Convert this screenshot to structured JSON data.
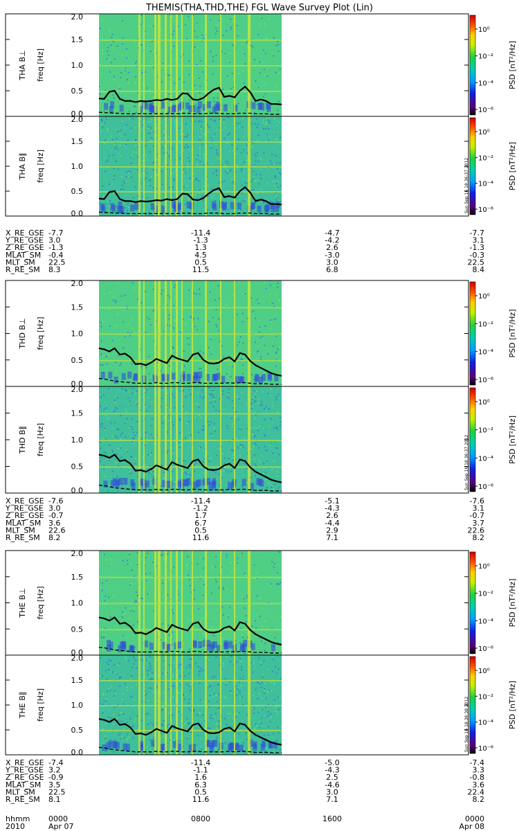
{
  "title": "THEMIS(THA,THD,THE) FGL Wave Survey Plot (Lin)",
  "colorbar": {
    "label": "PSD [nT²/Hz]",
    "tick_labels": [
      "10⁰",
      "10⁻²",
      "10⁻⁴",
      "10⁻⁶"
    ],
    "stamps": [
      "Sun Sep 16 18:36:37 2012",
      "Sun Sep 16 18:36:37 2012",
      "Sun Sep 16 18:36:38 2012"
    ]
  },
  "freq_ticks": [
    "2.0",
    "1.5",
    "1.0",
    "0.5",
    "0.0"
  ],
  "time_axis": {
    "row_labels": [
      "hhmm",
      "2010"
    ],
    "ticks": [
      {
        "hhmm": "0000",
        "date": "Apr 07"
      },
      {
        "hhmm": "0800",
        "date": ""
      },
      {
        "hhmm": "1600",
        "date": ""
      },
      {
        "hhmm": "0000",
        "date": "Apr 08"
      }
    ]
  },
  "chart_data": [
    {
      "type": "heatmap",
      "probe": "THA",
      "panels": [
        {
          "ylabel": "THA B⊥",
          "axis_label": "freq [Hz]",
          "ylim": [
            0,
            2
          ],
          "line_solid": [
            0.35,
            0.34,
            0.48,
            0.5,
            0.34,
            0.3,
            0.3,
            0.28,
            0.3,
            0.29,
            0.3,
            0.32,
            0.31,
            0.34,
            0.32,
            0.34,
            0.45,
            0.44,
            0.33,
            0.32,
            0.36,
            0.45,
            0.52,
            0.56,
            0.38,
            0.4,
            0.37,
            0.5,
            0.58,
            0.47,
            0.3,
            0.33,
            0.3,
            0.24,
            0.24,
            0.23
          ],
          "line_dashed": [
            0.08,
            0.07,
            0.07,
            0.06,
            0.06,
            0.05,
            0.05,
            0.05,
            0.05,
            0.05,
            0.05,
            0.05,
            0.05,
            0.05,
            0.05,
            0.05,
            0.06,
            0.06,
            0.05,
            0.05,
            0.05,
            0.06,
            0.06,
            0.06,
            0.05,
            0.05,
            0.05,
            0.06,
            0.06,
            0.06,
            0.05,
            0.05,
            0.05,
            0.04,
            0.04,
            0.04
          ]
        },
        {
          "ylabel": "THA B∥",
          "axis_label": "freq [Hz]",
          "ylim": [
            0,
            2
          ],
          "line_solid": [
            0.35,
            0.34,
            0.48,
            0.5,
            0.34,
            0.3,
            0.3,
            0.28,
            0.3,
            0.29,
            0.3,
            0.32,
            0.31,
            0.34,
            0.32,
            0.34,
            0.45,
            0.44,
            0.33,
            0.32,
            0.36,
            0.45,
            0.52,
            0.56,
            0.38,
            0.4,
            0.37,
            0.5,
            0.58,
            0.47,
            0.3,
            0.33,
            0.3,
            0.24,
            0.24,
            0.23
          ],
          "line_dashed": [
            0.08,
            0.07,
            0.07,
            0.06,
            0.06,
            0.05,
            0.05,
            0.05,
            0.05,
            0.05,
            0.05,
            0.05,
            0.05,
            0.05,
            0.05,
            0.05,
            0.06,
            0.06,
            0.05,
            0.05,
            0.05,
            0.06,
            0.06,
            0.06,
            0.05,
            0.05,
            0.05,
            0.06,
            0.06,
            0.06,
            0.05,
            0.05,
            0.05,
            0.04,
            0.04,
            0.04
          ]
        }
      ],
      "ephemeris": [
        {
          "label": "X_RE_GSE",
          "values": [
            "-7.7",
            "-11.4",
            "-4.7",
            "-7.7"
          ]
        },
        {
          "label": "Y_RE_GSE",
          "values": [
            "3.0",
            "-1.3",
            "-4.2",
            "3.1"
          ]
        },
        {
          "label": "Z_RE_GSE",
          "values": [
            "-1.3",
            "1.3",
            "2.6",
            "-1.3"
          ]
        },
        {
          "label": "MLAT_SM",
          "values": [
            "-0.4",
            "4.5",
            "-3.0",
            "-0.3"
          ]
        },
        {
          "label": "MLT_SM",
          "values": [
            "22.5",
            "0.5",
            "3.0",
            "22.5"
          ]
        },
        {
          "label": "R_RE_SM",
          "values": [
            "8.3",
            "11.5",
            "6.8",
            "8.4"
          ]
        }
      ]
    },
    {
      "type": "heatmap",
      "probe": "THD",
      "panels": [
        {
          "ylabel": "THD B⊥",
          "axis_label": "freq [Hz]",
          "ylim": [
            0,
            2
          ],
          "line_solid": [
            0.72,
            0.7,
            0.66,
            0.72,
            0.6,
            0.62,
            0.55,
            0.42,
            0.43,
            0.4,
            0.45,
            0.52,
            0.48,
            0.44,
            0.58,
            0.53,
            0.5,
            0.47,
            0.6,
            0.63,
            0.5,
            0.44,
            0.43,
            0.45,
            0.52,
            0.55,
            0.47,
            0.63,
            0.6,
            0.48,
            0.4,
            0.35,
            0.3,
            0.25,
            0.22,
            0.2
          ],
          "line_dashed": [
            0.15,
            0.14,
            0.12,
            0.1,
            0.09,
            0.08,
            0.07,
            0.06,
            0.06,
            0.06,
            0.06,
            0.07,
            0.06,
            0.06,
            0.07,
            0.07,
            0.06,
            0.06,
            0.07,
            0.07,
            0.06,
            0.06,
            0.06,
            0.06,
            0.06,
            0.07,
            0.06,
            0.07,
            0.07,
            0.06,
            0.05,
            0.05,
            0.05,
            0.04,
            0.04,
            0.04
          ]
        },
        {
          "ylabel": "THD B∥",
          "axis_label": "freq [Hz]",
          "ylim": [
            0,
            2
          ],
          "line_solid": [
            0.72,
            0.7,
            0.66,
            0.72,
            0.6,
            0.62,
            0.55,
            0.42,
            0.43,
            0.4,
            0.45,
            0.52,
            0.48,
            0.44,
            0.58,
            0.53,
            0.5,
            0.47,
            0.6,
            0.63,
            0.5,
            0.44,
            0.43,
            0.45,
            0.52,
            0.55,
            0.47,
            0.63,
            0.6,
            0.48,
            0.4,
            0.35,
            0.3,
            0.25,
            0.22,
            0.2
          ],
          "line_dashed": [
            0.15,
            0.14,
            0.12,
            0.1,
            0.09,
            0.08,
            0.07,
            0.06,
            0.06,
            0.06,
            0.06,
            0.07,
            0.06,
            0.06,
            0.07,
            0.07,
            0.06,
            0.06,
            0.07,
            0.07,
            0.06,
            0.06,
            0.06,
            0.06,
            0.06,
            0.07,
            0.06,
            0.07,
            0.07,
            0.06,
            0.05,
            0.05,
            0.05,
            0.04,
            0.04,
            0.04
          ]
        }
      ],
      "ephemeris": [
        {
          "label": "X_RE_GSE",
          "values": [
            "-7.6",
            "-11.4",
            "-5.1",
            "-7.6"
          ]
        },
        {
          "label": "Y_RE_GSE",
          "values": [
            "3.0",
            "-1.2",
            "-4.3",
            "3.1"
          ]
        },
        {
          "label": "Z_RE_GSE",
          "values": [
            "-0.7",
            "1.7",
            "2.6",
            "-0.7"
          ]
        },
        {
          "label": "MLAT_SM",
          "values": [
            "3.6",
            "6.7",
            "-4.4",
            "3.7"
          ]
        },
        {
          "label": "MLT_SM",
          "values": [
            "22.6",
            "0.5",
            "2.9",
            "22.6"
          ]
        },
        {
          "label": "R_RE_SM",
          "values": [
            "8.2",
            "11.6",
            "7.1",
            "8.2"
          ]
        }
      ]
    },
    {
      "type": "heatmap",
      "probe": "THE",
      "panels": [
        {
          "ylabel": "THE B⊥",
          "axis_label": "freq [Hz]",
          "ylim": [
            0,
            2
          ],
          "line_solid": [
            0.72,
            0.7,
            0.66,
            0.72,
            0.6,
            0.62,
            0.55,
            0.42,
            0.43,
            0.4,
            0.45,
            0.52,
            0.48,
            0.44,
            0.58,
            0.53,
            0.5,
            0.47,
            0.6,
            0.63,
            0.5,
            0.44,
            0.43,
            0.45,
            0.52,
            0.55,
            0.47,
            0.63,
            0.6,
            0.48,
            0.4,
            0.35,
            0.3,
            0.25,
            0.22,
            0.2
          ],
          "line_dashed": [
            0.15,
            0.14,
            0.12,
            0.1,
            0.09,
            0.08,
            0.07,
            0.06,
            0.06,
            0.06,
            0.06,
            0.07,
            0.06,
            0.06,
            0.07,
            0.07,
            0.06,
            0.06,
            0.07,
            0.07,
            0.06,
            0.06,
            0.06,
            0.06,
            0.06,
            0.07,
            0.06,
            0.07,
            0.07,
            0.06,
            0.05,
            0.05,
            0.05,
            0.04,
            0.04,
            0.04
          ]
        },
        {
          "ylabel": "THE B∥",
          "axis_label": "freq [Hz]",
          "ylim": [
            0,
            2
          ],
          "line_solid": [
            0.72,
            0.7,
            0.66,
            0.72,
            0.6,
            0.62,
            0.55,
            0.42,
            0.43,
            0.4,
            0.45,
            0.52,
            0.48,
            0.44,
            0.58,
            0.53,
            0.5,
            0.47,
            0.6,
            0.63,
            0.5,
            0.44,
            0.43,
            0.45,
            0.52,
            0.55,
            0.47,
            0.63,
            0.6,
            0.48,
            0.4,
            0.35,
            0.3,
            0.25,
            0.22,
            0.2
          ],
          "line_dashed": [
            0.15,
            0.14,
            0.12,
            0.1,
            0.09,
            0.08,
            0.07,
            0.06,
            0.06,
            0.06,
            0.06,
            0.07,
            0.06,
            0.06,
            0.07,
            0.07,
            0.06,
            0.06,
            0.07,
            0.07,
            0.06,
            0.06,
            0.06,
            0.06,
            0.06,
            0.07,
            0.06,
            0.07,
            0.07,
            0.06,
            0.05,
            0.05,
            0.05,
            0.04,
            0.04,
            0.04
          ]
        }
      ],
      "ephemeris": [
        {
          "label": "X_RE_GSE",
          "values": [
            "-7.4",
            "-11.4",
            "-5.0",
            "-7.4"
          ]
        },
        {
          "label": "Y_RE_GSE",
          "values": [
            "3.2",
            "-1.1",
            "-4.3",
            "3.3"
          ]
        },
        {
          "label": "Z_RE_GSE",
          "values": [
            "-0.9",
            "1.6",
            "2.5",
            "-0.8"
          ]
        },
        {
          "label": "MLAT_SM",
          "values": [
            "3.5",
            "6.3",
            "-4.6",
            "3.6"
          ]
        },
        {
          "label": "MLT_SM",
          "values": [
            "22.5",
            "0.5",
            "3.0",
            "22.4"
          ]
        },
        {
          "label": "R_RE_SM",
          "values": [
            "8.1",
            "11.6",
            "7.1",
            "8.2"
          ]
        }
      ]
    }
  ]
}
